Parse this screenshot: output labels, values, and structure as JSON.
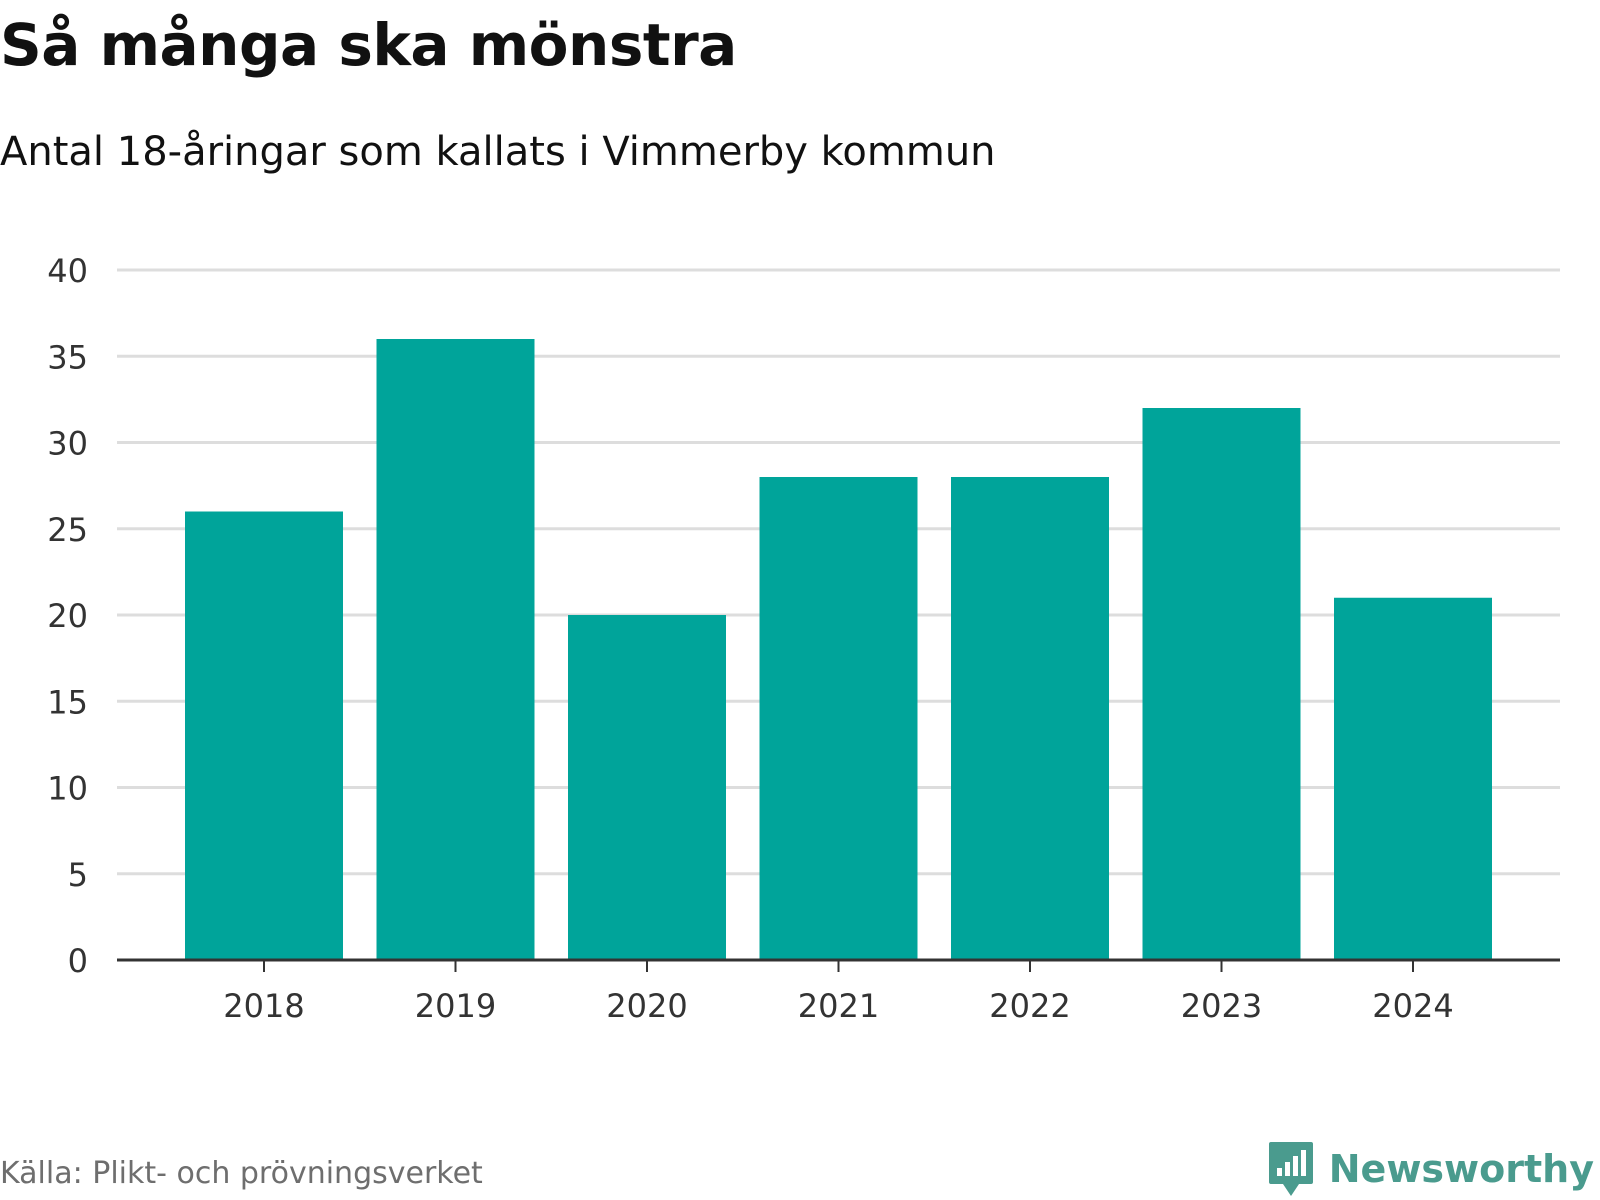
{
  "header": {
    "title": "Så många ska mönstra",
    "subtitle": "Antal 18-åringar som kallats i Vimmerby kommun"
  },
  "footer": {
    "source": "Källa: Plikt- och prövningsverket",
    "brand": "Newsworthy",
    "brand_icon": "bar-chart-speech-bubble-icon"
  },
  "colors": {
    "bar": "#00a49a",
    "grid": "#dddddd",
    "axis": "#333333",
    "brand": "#4a9b8e"
  },
  "chart_data": {
    "type": "bar",
    "categories": [
      "2018",
      "2019",
      "2020",
      "2021",
      "2022",
      "2023",
      "2024"
    ],
    "values": [
      26,
      36,
      20,
      28,
      28,
      32,
      21
    ],
    "ylim": [
      0,
      40
    ],
    "yticks": [
      0,
      5,
      10,
      15,
      20,
      25,
      30,
      35,
      40
    ],
    "grid": true,
    "legend": "none"
  }
}
